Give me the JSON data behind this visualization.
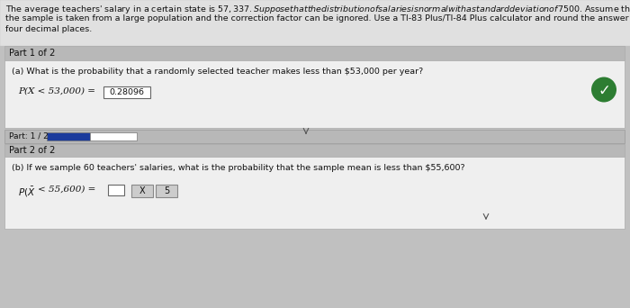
{
  "overall_bg": "#c0c0c0",
  "header_bg": "#e0e0e0",
  "header_line1": "The average teachers' salary in a certain state is $57,337. Suppose that the distribution of salaries is normal with a standard deviation of $7500. Assume that",
  "header_line2": "the sample is taken from a large population and the correction factor can be ignored. Use a TI-83 Plus/TI-84 Plus calculator and round the answer to at least",
  "header_line3": "four decimal places.",
  "part1_bar_bg": "#b8b8b8",
  "part1_bar_label": "Part 1 of 2",
  "part1_content_bg": "#efefef",
  "part1_question": "(a) What is the probability that a randomly selected teacher makes less than $53,000 per year?",
  "part1_formula_prefix": "P(X < 53,000) =",
  "part1_answer": "0.28096",
  "part1_answer_box_bg": "#ffffff",
  "checkmark_circle_color": "#2d7d32",
  "progress_bar_bg": "#b8b8b8",
  "progress_label": "Part: 1 / 2",
  "progress_filled_color": "#1a3a9c",
  "progress_empty_color": "#ffffff",
  "progress_bar_border": "#777777",
  "part2_bar_bg": "#b8b8b8",
  "part2_bar_label": "Part 2 of 2",
  "part2_content_bg": "#efefef",
  "part2_question": "(b) If we sample 60 teachers' salaries, what is the probability that the sample mean is less than $55,600?",
  "part2_formula_prefix": "P(",
  "part2_answer_box_bg": "#ffffff",
  "btn_bg": "#cccccc",
  "btn_border": "#888888",
  "btn_x_label": "X",
  "btn_s_label": "5",
  "text_color": "#111111",
  "separator_line_color": "#999999",
  "font_size_header": 6.8,
  "font_size_body": 6.8,
  "font_size_formula": 7.5,
  "font_size_label": 7.2,
  "font_size_small": 6.5
}
